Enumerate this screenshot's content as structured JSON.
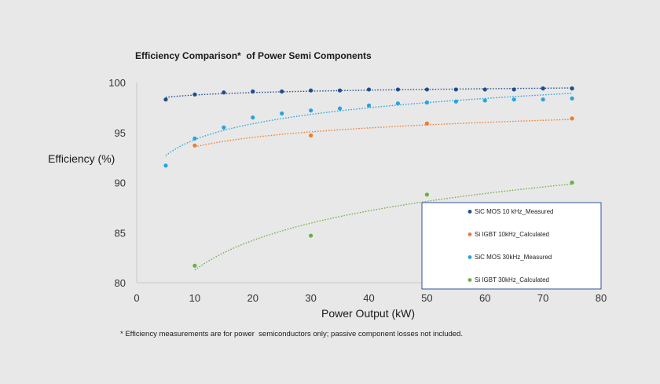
{
  "chart_data": {
    "type": "scatter",
    "title": "Efficiency Comparison*  of Power Semi Components",
    "xlabel": "Power Output (kW)",
    "ylabel": "Efficiency (%)",
    "xlim": [
      0,
      80
    ],
    "ylim": [
      80,
      100
    ],
    "xticks": [
      0,
      10,
      20,
      30,
      40,
      50,
      60,
      70,
      80
    ],
    "yticks": [
      80,
      85,
      90,
      95,
      100
    ],
    "grid": false,
    "legend_position": "bottom-right",
    "trendlines": "dotted",
    "series": [
      {
        "name": "SiC MOS 10 kHz_Measured",
        "color": "#1f4e8c",
        "x": [
          5,
          10,
          15,
          20,
          25,
          30,
          35,
          40,
          45,
          50,
          55,
          60,
          65,
          70,
          75
        ],
        "y": [
          98.3,
          98.8,
          99.0,
          99.1,
          99.1,
          99.2,
          99.2,
          99.3,
          99.3,
          99.3,
          99.3,
          99.3,
          99.3,
          99.4,
          99.4
        ]
      },
      {
        "name": "Si IGBT 10kHz_Calculated",
        "color": "#ed7d31",
        "x": [
          10,
          30,
          50,
          75
        ],
        "y": [
          93.7,
          94.7,
          95.9,
          96.4
        ]
      },
      {
        "name": "SiC MOS 30kHz_Measured",
        "color": "#29a3dc",
        "x": [
          5,
          10,
          15,
          20,
          25,
          30,
          35,
          40,
          45,
          50,
          55,
          60,
          65,
          70,
          75
        ],
        "y": [
          91.7,
          94.4,
          95.5,
          96.5,
          96.9,
          97.2,
          97.4,
          97.7,
          97.9,
          98.0,
          98.1,
          98.2,
          98.3,
          98.3,
          98.4
        ]
      },
      {
        "name": "Si IGBT 30kHz_Calculated",
        "color": "#70ad47",
        "x": [
          10,
          30,
          50,
          75
        ],
        "y": [
          81.7,
          84.7,
          88.8,
          90.0
        ]
      }
    ]
  },
  "footnote": "* Efficiency measurements are for power  semiconductors only; passive component losses not included."
}
